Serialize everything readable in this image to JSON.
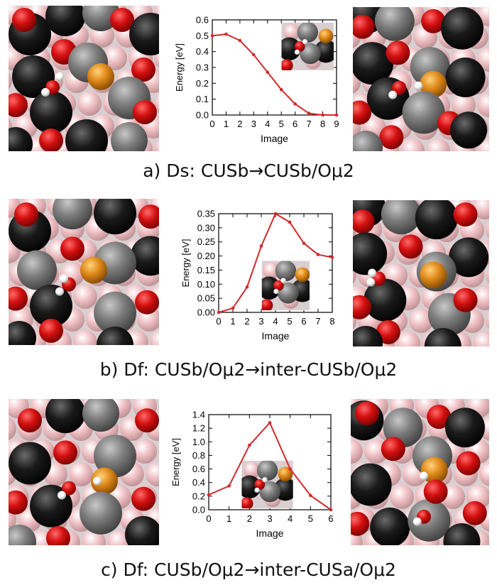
{
  "captions": [
    "a) Ds: CUSb→CUSb/Oμ2",
    "b) Df: CUSb/Oμ2→inter-CUSb/Oμ2",
    "c) Df: CUSb/Oμ2→inter-CUSa/Oμ2"
  ],
  "colors": {
    "line": "#d42a2a",
    "oxygen": "#d41010",
    "black_atom": "#1a1a1a",
    "gray_atom": "#7d7d7d",
    "pink_atom": "#f0c2c6",
    "gold_atom": "#e08a1a",
    "hydrogen": "#ffffff"
  },
  "chart_data": [
    {
      "type": "line",
      "title": "",
      "xlabel": "Image",
      "ylabel": "Energy [eV]",
      "x": [
        0,
        1,
        2,
        3,
        4,
        5,
        6,
        7,
        8,
        9
      ],
      "y": [
        0.5,
        0.51,
        0.47,
        0.38,
        0.27,
        0.16,
        0.07,
        0.01,
        0.0,
        0.0
      ],
      "xlim": [
        0,
        9
      ],
      "ylim": [
        0,
        0.6
      ],
      "xticks": [
        "0",
        "1",
        "2",
        "3",
        "4",
        "5",
        "6",
        "7",
        "8",
        "9"
      ],
      "yticks": [
        "0.0",
        "0.1",
        "0.2",
        "0.3",
        "0.4",
        "0.5",
        "0.6"
      ],
      "inset": "top-right"
    },
    {
      "type": "line",
      "title": "",
      "xlabel": "Image",
      "ylabel": "Energy [eV]",
      "x": [
        0,
        1,
        2,
        3,
        4,
        5,
        6,
        7,
        8
      ],
      "y": [
        0.0,
        0.015,
        0.09,
        0.235,
        0.35,
        0.32,
        0.245,
        0.205,
        0.195
      ],
      "xlim": [
        0,
        8
      ],
      "ylim": [
        0,
        0.35
      ],
      "xticks": [
        "0",
        "1",
        "2",
        "3",
        "4",
        "5",
        "6",
        "7",
        "8"
      ],
      "yticks": [
        "0.00",
        "0.05",
        "0.10",
        "0.15",
        "0.20",
        "0.25",
        "0.30",
        "0.35"
      ],
      "inset": "center-bottom"
    },
    {
      "type": "line",
      "title": "",
      "xlabel": "Image",
      "ylabel": "Energy [eV]",
      "x": [
        0,
        1,
        2,
        3,
        4,
        5,
        6
      ],
      "y": [
        0.22,
        0.35,
        0.95,
        1.28,
        0.6,
        0.21,
        0.0
      ],
      "xlim": [
        0,
        6
      ],
      "ylim": [
        0,
        1.4
      ],
      "xticks": [
        "0",
        "1",
        "2",
        "3",
        "4",
        "5",
        "6"
      ],
      "yticks": [
        "0.0",
        "0.2",
        "0.4",
        "0.6",
        "0.8",
        "1.0",
        "1.2",
        "1.4"
      ],
      "inset": "bottom-left"
    }
  ]
}
